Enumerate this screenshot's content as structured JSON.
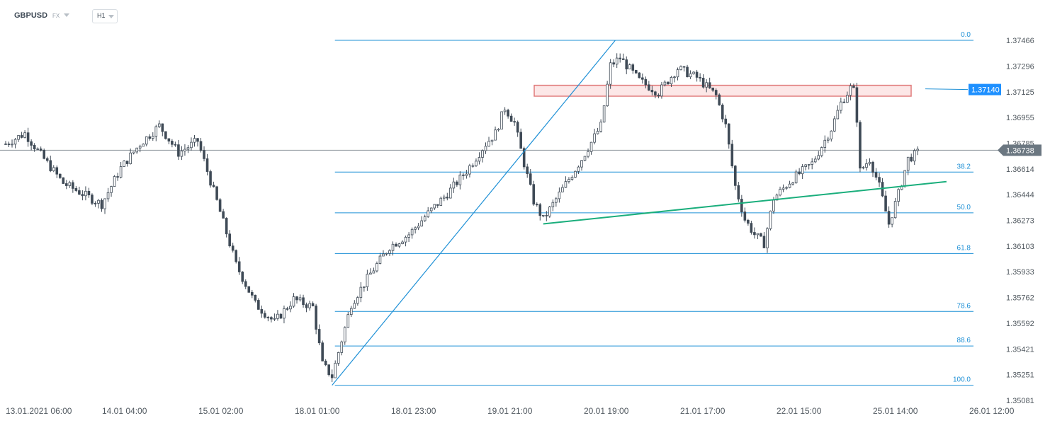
{
  "header": {
    "symbol": "GBPUSD",
    "market": "FX",
    "timeframe": "H1"
  },
  "chart_data": {
    "type": "candlestick",
    "instrument": "GBPUSD",
    "timeframe": "H1",
    "ylim": [
      1.35081,
      1.37466
    ],
    "y_ticks": [
      "1.37466",
      "1.37296",
      "1.37125",
      "1.36955",
      "1.36785",
      "1.36614",
      "1.36444",
      "1.36273",
      "1.36103",
      "1.35933",
      "1.35762",
      "1.35592",
      "1.35421",
      "1.35251",
      "1.35081"
    ],
    "x_ticks": [
      "13.01.2021  06:00",
      "14.01  04:00",
      "15.01  02:00",
      "18.01  01:00",
      "18.01  23:00",
      "19.01  21:00",
      "20.01  19:00",
      "21.01  17:00",
      "22.01  15:00",
      "25.01  14:00",
      "26.01  12:00"
    ],
    "current_price": "1.36738",
    "level_tag": "1.37140",
    "resistance_zone": [
      1.37096,
      1.37168
    ],
    "fibonacci": {
      "high": 1.37466,
      "low": 1.35181,
      "levels": [
        {
          "ratio": 0.0,
          "label": "0.0"
        },
        {
          "ratio": 0.382,
          "label": "38.2"
        },
        {
          "ratio": 0.5,
          "label": "50.0"
        },
        {
          "ratio": 0.618,
          "label": "61.8"
        },
        {
          "ratio": 0.786,
          "label": "78.6"
        },
        {
          "ratio": 0.886,
          "label": "88.6"
        },
        {
          "ratio": 1.0,
          "label": "100.0"
        }
      ]
    },
    "trendlines": [
      {
        "name": "Support trendline",
        "from": [
          56.0,
          1.3625
        ],
        "to": [
          98.0,
          1.3653
        ],
        "color": "#1aae7c"
      },
      {
        "name": "Rally trendline",
        "from": [
          34.0,
          1.35181
        ],
        "to": [
          63.5,
          1.37466
        ],
        "color": "#1e90d6"
      }
    ],
    "ohlc_anchor_closes": [
      [
        0,
        1.3678
      ],
      [
        2,
        1.3685
      ],
      [
        4,
        1.3668
      ],
      [
        6,
        1.3652
      ],
      [
        8,
        1.3645
      ],
      [
        10,
        1.3638
      ],
      [
        12,
        1.3662
      ],
      [
        14,
        1.3678
      ],
      [
        16,
        1.369
      ],
      [
        18,
        1.3672
      ],
      [
        20,
        1.368
      ],
      [
        22,
        1.364
      ],
      [
        24,
        1.3598
      ],
      [
        26,
        1.3572
      ],
      [
        28,
        1.356
      ],
      [
        30,
        1.3575
      ],
      [
        32,
        1.357
      ],
      [
        33,
        1.3532
      ],
      [
        34,
        1.3524
      ],
      [
        36,
        1.3572
      ],
      [
        38,
        1.3592
      ],
      [
        40,
        1.361
      ],
      [
        42,
        1.3618
      ],
      [
        44,
        1.3632
      ],
      [
        46,
        1.3645
      ],
      [
        48,
        1.366
      ],
      [
        50,
        1.3678
      ],
      [
        51,
        1.3685
      ],
      [
        52,
        1.3702
      ],
      [
        53,
        1.3692
      ],
      [
        54,
        1.3665
      ],
      [
        55,
        1.364
      ],
      [
        56,
        1.3628
      ],
      [
        58,
        1.3648
      ],
      [
        60,
        1.3668
      ],
      [
        62,
        1.369
      ],
      [
        63,
        1.373
      ],
      [
        64,
        1.3735
      ],
      [
        66,
        1.372
      ],
      [
        68,
        1.3712
      ],
      [
        70,
        1.3728
      ],
      [
        72,
        1.3722
      ],
      [
        74,
        1.371
      ],
      [
        75,
        1.369
      ],
      [
        76,
        1.365
      ],
      [
        77,
        1.3628
      ],
      [
        78,
        1.3618
      ],
      [
        79,
        1.3612
      ],
      [
        80,
        1.3642
      ],
      [
        82,
        1.3655
      ],
      [
        84,
        1.3665
      ],
      [
        86,
        1.3688
      ],
      [
        87,
        1.3705
      ],
      [
        88,
        1.3715
      ],
      [
        88.5,
        1.3712
      ],
      [
        89,
        1.366
      ],
      [
        90,
        1.3668
      ],
      [
        91,
        1.365
      ],
      [
        92,
        1.3625
      ],
      [
        93,
        1.3645
      ],
      [
        94,
        1.3668
      ],
      [
        95,
        1.3672
      ]
    ]
  },
  "colors": {
    "candle_up_border": "#3f4a56",
    "candle_up_fill": "#ffffff",
    "candle_down": "#3f4a56",
    "fib": "#1e90d6",
    "support_line": "#1aae7c",
    "zone_fill": "#fbe3e3",
    "zone_border": "#e07a7a",
    "price_tag": "#1e90ff",
    "current_tag": "#6b7781",
    "current_line": "#8e969c"
  }
}
